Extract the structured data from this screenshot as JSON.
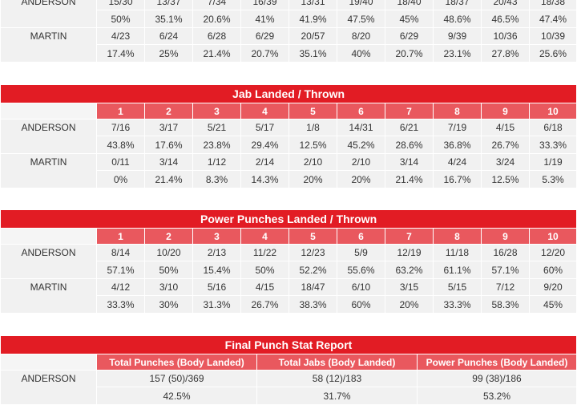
{
  "top_table": {
    "rows": [
      {
        "name": "ANDERSON",
        "fractions": [
          "15/30",
          "13/37",
          "7/34",
          "16/39",
          "13/31",
          "19/40",
          "18/40",
          "18/37",
          "20/43",
          "18/38"
        ],
        "percents": [
          "50%",
          "35.1%",
          "20.6%",
          "41%",
          "41.9%",
          "47.5%",
          "45%",
          "48.6%",
          "46.5%",
          "47.4%"
        ]
      },
      {
        "name": "MARTIN",
        "fractions": [
          "4/23",
          "6/24",
          "6/28",
          "6/29",
          "20/57",
          "8/20",
          "6/29",
          "9/39",
          "10/36",
          "10/39"
        ],
        "percents": [
          "17.4%",
          "25%",
          "21.4%",
          "20.7%",
          "35.1%",
          "40%",
          "20.7%",
          "23.1%",
          "27.8%",
          "25.6%"
        ]
      }
    ]
  },
  "jab_table": {
    "title": "Jab Landed / Thrown",
    "rounds": [
      "1",
      "2",
      "3",
      "4",
      "5",
      "6",
      "7",
      "8",
      "9",
      "10"
    ],
    "rows": [
      {
        "name": "ANDERSON",
        "fractions": [
          "7/16",
          "3/17",
          "5/21",
          "5/17",
          "1/8",
          "14/31",
          "6/21",
          "7/19",
          "4/15",
          "6/18"
        ],
        "percents": [
          "43.8%",
          "17.6%",
          "23.8%",
          "29.4%",
          "12.5%",
          "45.2%",
          "28.6%",
          "36.8%",
          "26.7%",
          "33.3%"
        ]
      },
      {
        "name": "MARTIN",
        "fractions": [
          "0/11",
          "3/14",
          "1/12",
          "2/14",
          "2/10",
          "2/10",
          "3/14",
          "4/24",
          "3/24",
          "1/19"
        ],
        "percents": [
          "0%",
          "21.4%",
          "8.3%",
          "14.3%",
          "20%",
          "20%",
          "21.4%",
          "16.7%",
          "12.5%",
          "5.3%"
        ]
      }
    ]
  },
  "power_table": {
    "title": "Power Punches Landed / Thrown",
    "rounds": [
      "1",
      "2",
      "3",
      "4",
      "5",
      "6",
      "7",
      "8",
      "9",
      "10"
    ],
    "rows": [
      {
        "name": "ANDERSON",
        "fractions": [
          "8/14",
          "10/20",
          "2/13",
          "11/22",
          "12/23",
          "5/9",
          "12/19",
          "11/18",
          "16/28",
          "12/20"
        ],
        "percents": [
          "57.1%",
          "50%",
          "15.4%",
          "50%",
          "52.2%",
          "55.6%",
          "63.2%",
          "61.1%",
          "57.1%",
          "60%"
        ]
      },
      {
        "name": "MARTIN",
        "fractions": [
          "4/12",
          "3/10",
          "5/16",
          "4/15",
          "18/47",
          "6/10",
          "3/15",
          "5/15",
          "7/12",
          "9/20"
        ],
        "percents": [
          "33.3%",
          "30%",
          "31.3%",
          "26.7%",
          "38.3%",
          "60%",
          "20%",
          "33.3%",
          "58.3%",
          "45%"
        ]
      }
    ]
  },
  "final_table": {
    "title": "Final Punch Stat Report",
    "headers": [
      "Total Punches (Body Landed)",
      "Total Jabs (Body Landed)",
      "Power Punches (Body Landed)"
    ],
    "rows": [
      {
        "name": "ANDERSON",
        "values": [
          "157 (50)/369",
          "58 (12)/183",
          "99 (38)/186"
        ],
        "percents": [
          "42.5%",
          "31.7%",
          "53.2%"
        ]
      }
    ]
  },
  "colors": {
    "title_red": "#e21c24",
    "header_red": "#e9585e",
    "row_gray": "#f1f1f1"
  }
}
